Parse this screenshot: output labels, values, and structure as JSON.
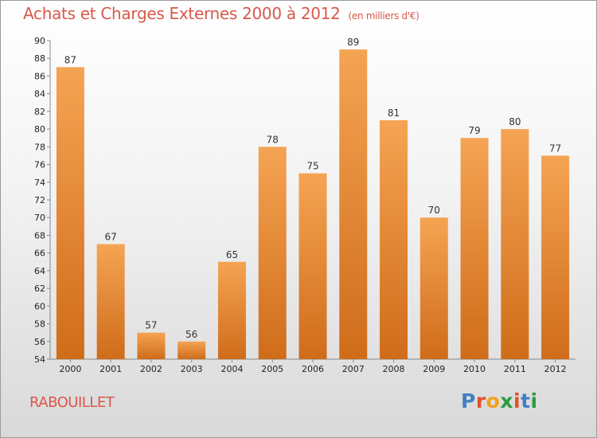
{
  "header": {
    "title": "Achats et Charges Externes 2000 à 2012",
    "subtitle": "(en milliers d'€)"
  },
  "commune": "RABOUILLET",
  "logo": {
    "letters": [
      {
        "ch": "P",
        "color": "#3f7fc4"
      },
      {
        "ch": "r",
        "color": "#e2512b"
      },
      {
        "ch": "o",
        "color": "#f0a21a"
      },
      {
        "ch": "x",
        "color": "#2f9a3d"
      },
      {
        "ch": "i",
        "color": "#e2512b"
      },
      {
        "ch": "t",
        "color": "#3f7fc4"
      },
      {
        "ch": "i",
        "color": "#2f9a3d"
      }
    ]
  },
  "chart_data": {
    "type": "bar",
    "categories": [
      "2000",
      "2001",
      "2002",
      "2003",
      "2004",
      "2005",
      "2006",
      "2007",
      "2008",
      "2009",
      "2010",
      "2011",
      "2012"
    ],
    "values": [
      87,
      67,
      57,
      56,
      65,
      78,
      75,
      89,
      81,
      70,
      79,
      80,
      77
    ],
    "ylim": [
      54,
      90
    ],
    "ytick_step": 2,
    "grid": false,
    "bar_color_top": "#f5a453",
    "bar_color_bottom": "#cf6c1a"
  }
}
